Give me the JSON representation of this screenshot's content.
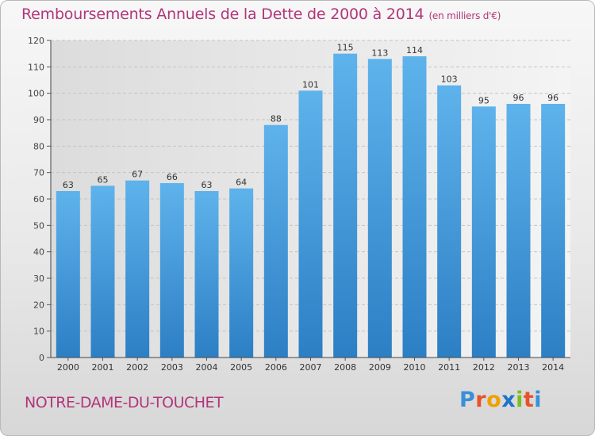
{
  "header": {
    "title": "Remboursements Annuels de la Dette de 2000 à 2014",
    "unit": "(en milliers d'€)"
  },
  "footer": {
    "commune": "NOTRE-DAME-DU-TOUCHET",
    "logo_text": "Proxiti"
  },
  "colors": {
    "title": "#b2357b",
    "bar_top": "#5eb3ec",
    "bar_bottom": "#2c7fc4",
    "logo": [
      "#3a8fd8",
      "#e8522a",
      "#f0a000",
      "#1f73c8",
      "#7bbf1e",
      "#e8522a",
      "#3a8fd8"
    ]
  },
  "chart_data": {
    "type": "bar",
    "title": "Remboursements Annuels de la Dette de 2000 à 2014",
    "subtitle": "(en milliers d'€)",
    "categories": [
      "2000",
      "2001",
      "2002",
      "2003",
      "2004",
      "2005",
      "2006",
      "2007",
      "2008",
      "2009",
      "2010",
      "2011",
      "2012",
      "2013",
      "2014"
    ],
    "values": [
      63,
      65,
      67,
      66,
      63,
      64,
      88,
      101,
      115,
      113,
      114,
      103,
      95,
      96,
      96
    ],
    "ylim": [
      0,
      120
    ],
    "yticks": [
      0,
      10,
      20,
      30,
      40,
      50,
      60,
      70,
      80,
      90,
      100,
      110,
      120
    ],
    "grid": true,
    "data_labels": true
  }
}
